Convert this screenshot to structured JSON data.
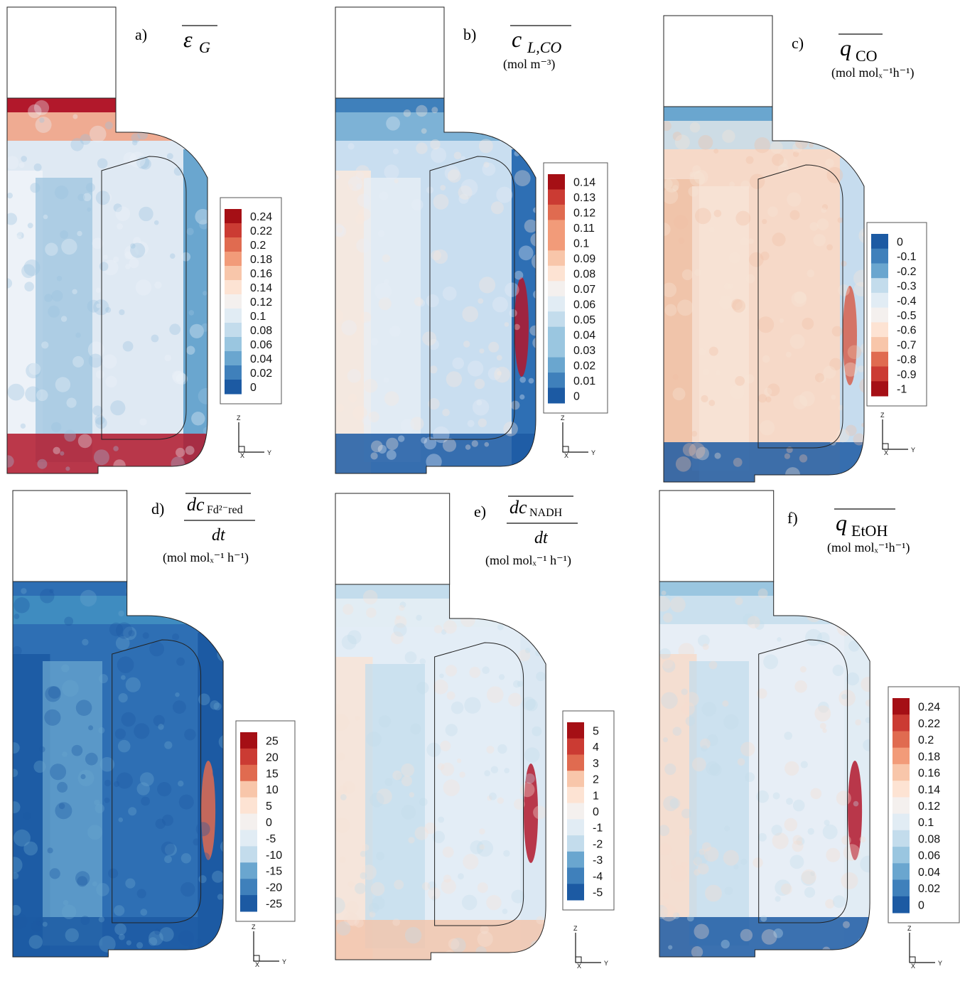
{
  "panels": [
    {
      "id": "a",
      "letter": "a)",
      "symbol": "ε",
      "subscript": "G",
      "unit": "",
      "legend": [
        "0.24",
        "0.22",
        "0.2",
        "0.18",
        "0.16",
        "0.14",
        "0.12",
        "0.1",
        "0.08",
        "0.06",
        "0.04",
        "0.02",
        "0"
      ],
      "palette": "gas",
      "axis": {
        "z": "Z",
        "y": "Y",
        "x": "X"
      }
    },
    {
      "id": "b",
      "letter": "b)",
      "symbol": "c",
      "subscript": "L,CO",
      "unit": "(mol m⁻³)",
      "legend": [
        "0.14",
        "0.13",
        "0.12",
        "0.11",
        "0.1",
        "0.09",
        "0.08",
        "0.07",
        "0.06",
        "0.05",
        "0.04",
        "0.03",
        "0.02",
        "0.01",
        "0"
      ],
      "palette": "co",
      "axis": {
        "z": "Z",
        "y": "Y",
        "x": "X"
      }
    },
    {
      "id": "c",
      "letter": "c)",
      "symbol": "q",
      "subscript": "CO",
      "unit": "(mol molₓ⁻¹h⁻¹)",
      "legend": [
        "0",
        "-0.1",
        "-0.2",
        "-0.3",
        "-0.4",
        "-0.5",
        "-0.6",
        "-0.7",
        "-0.8",
        "-0.9",
        "-1"
      ],
      "palette": "qco",
      "axis": {
        "z": "Z",
        "y": "Y",
        "x": "X"
      }
    },
    {
      "id": "d",
      "letter": "d)",
      "symbol": "dc",
      "subscript": "Fd²⁻red",
      "denominator": "dt",
      "unit": "(mol molₓ⁻¹ h⁻¹)",
      "legend": [
        "25",
        "20",
        "15",
        "10",
        "5",
        "0",
        "-5",
        "-10",
        "-15",
        "-20",
        "-25"
      ],
      "palette": "fd",
      "axis": {
        "z": "Z",
        "y": "Y",
        "x": "X"
      }
    },
    {
      "id": "e",
      "letter": "e)",
      "symbol": "dc",
      "subscript": "NADH",
      "denominator": "dt",
      "unit": "(mol molₓ⁻¹ h⁻¹)",
      "legend": [
        "5",
        "4",
        "3",
        "2",
        "1",
        "0",
        "-1",
        "-2",
        "-3",
        "-4",
        "-5"
      ],
      "palette": "nadh",
      "axis": {
        "z": "Z",
        "y": "Y",
        "x": "X"
      }
    },
    {
      "id": "f",
      "letter": "f)",
      "symbol": "q",
      "subscript": "EtOH",
      "unit": "(mol molₓ⁻¹h⁻¹)",
      "legend": [
        "0.24",
        "0.22",
        "0.2",
        "0.18",
        "0.16",
        "0.14",
        "0.12",
        "0.1",
        "0.08",
        "0.06",
        "0.04",
        "0.02",
        "0"
      ],
      "palette": "etoh",
      "axis": {
        "z": "Z",
        "y": "Y",
        "x": "X"
      }
    }
  ],
  "colors": {
    "deepRed": "#b2182b",
    "red": "#d6604d",
    "orange": "#f4a582",
    "peach": "#fddbc7",
    "white": "#f7f7f7",
    "paleBlue": "#d1e5f0",
    "lightBlue": "#92c5de",
    "blue": "#4393c3",
    "deepBlue": "#2166ac",
    "navy": "#1a5aa0"
  }
}
